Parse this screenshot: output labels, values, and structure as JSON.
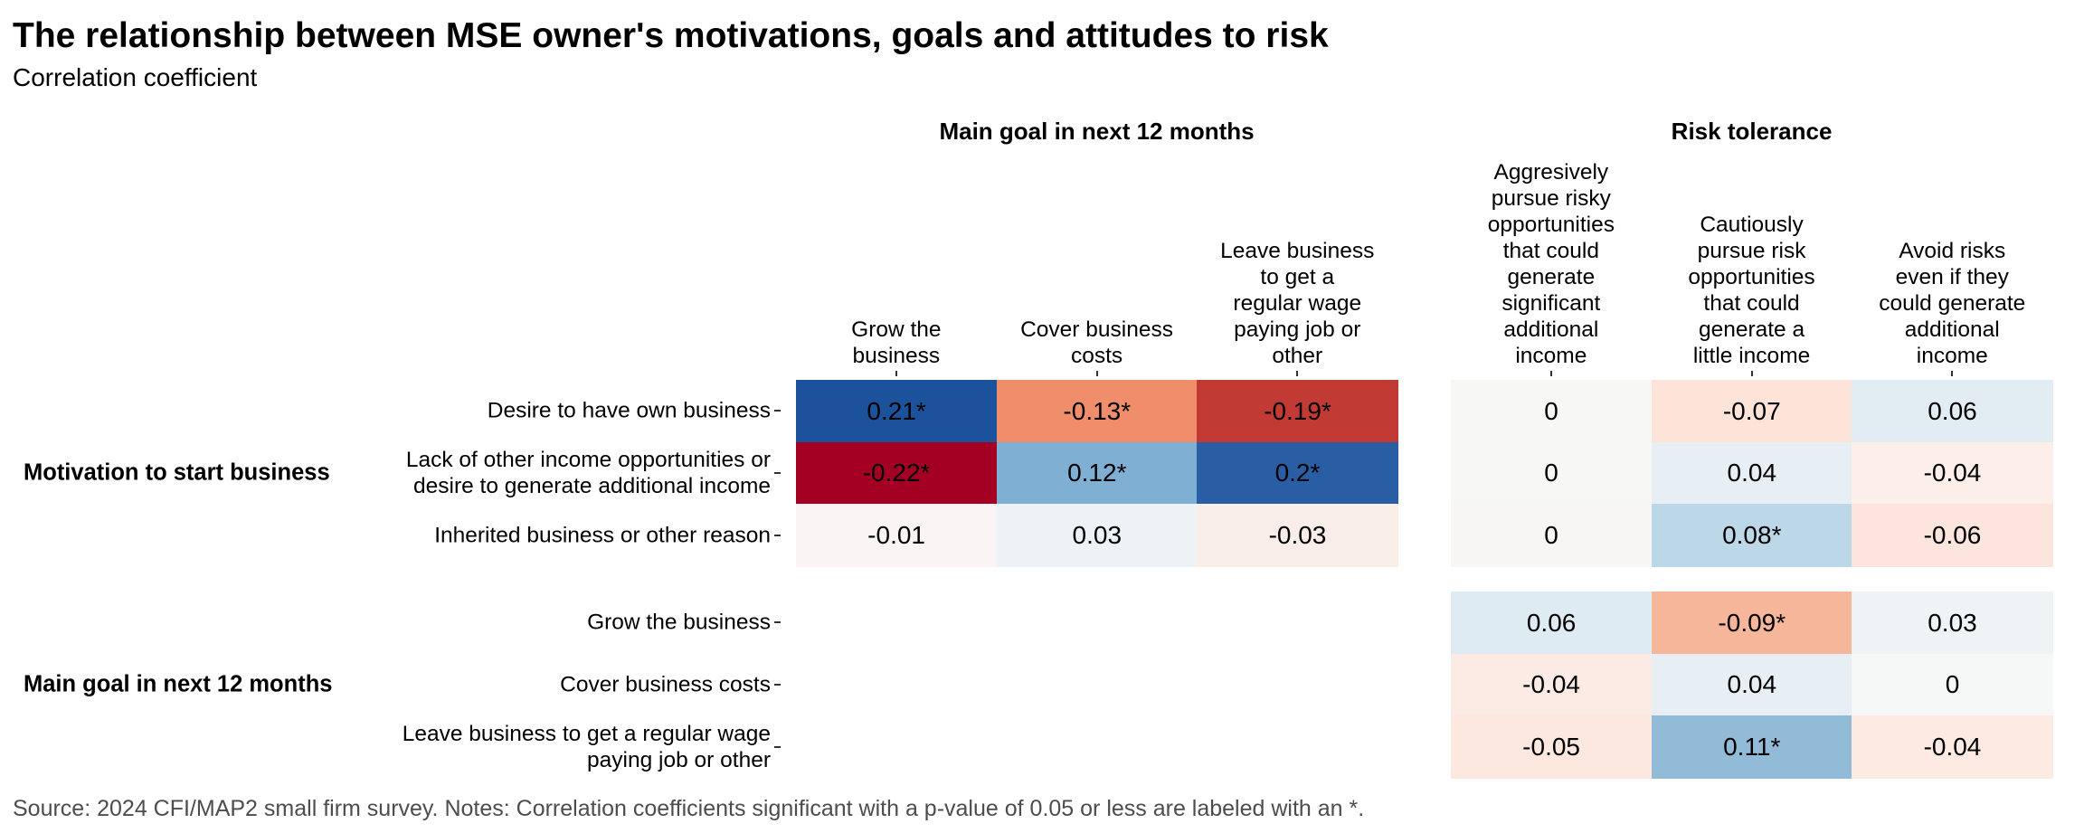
{
  "header": {
    "title": "The relationship between MSE owner's motivations, goals and attitudes to risk",
    "subtitle": "Correlation coefficient"
  },
  "footer": {
    "source": "Source: 2024 CFI/MAP2 small firm survey. Notes: Correlation coefficients significant with a p-value of 0.05 or less are labeled with an *."
  },
  "chart_data": {
    "type": "heatmap",
    "title": "The relationship between MSE owner's motivations, goals and attitudes to risk",
    "subtitle": "Correlation coefficient",
    "color_scale": {
      "name": "RdBu diverging",
      "negative": "#a50026",
      "zero": "#f7f7f7",
      "positive": "#1c519b",
      "range": [
        -0.22,
        0.22
      ]
    },
    "significance_marker": "*",
    "column_groups": [
      {
        "name": "Main goal in next 12 months",
        "columns": [
          "Grow the\nbusiness",
          "Cover business\ncosts",
          "Leave business\nto get a\nregular wage\npaying job or\nother"
        ]
      },
      {
        "name": "Risk tolerance",
        "columns": [
          "Aggresively\npursue risky\nopportunities\nthat could\ngenerate\nsignificant\nadditional\nincome",
          "Cautiously\npursue risk\nopportunities\nthat could\ngenerate a\nlittle income",
          "Avoid risks\neven if they\ncould generate\nadditional\nincome"
        ]
      }
    ],
    "row_groups": [
      {
        "name": "Motivation to start business",
        "rows": [
          {
            "label": "Desire to have own business",
            "cells": [
              {
                "value": 0.21,
                "label": "0.21*",
                "color": "#1c519b",
                "group": 0
              },
              {
                "value": -0.13,
                "label": "-0.13*",
                "color": "#f08e6c",
                "group": 0
              },
              {
                "value": -0.19,
                "label": "-0.19*",
                "color": "#c13a33",
                "group": 0
              },
              {
                "value": 0,
                "label": "0",
                "color": "#f7f7f6",
                "group": 1
              },
              {
                "value": -0.07,
                "label": "-0.07",
                "color": "#fde3d8",
                "group": 1
              },
              {
                "value": 0.06,
                "label": "0.06",
                "color": "#e1ecf3",
                "group": 1
              }
            ]
          },
          {
            "label": "Lack of other income opportunities or\ndesire to generate additional income",
            "cells": [
              {
                "value": -0.22,
                "label": "-0.22*",
                "color": "#a40023",
                "group": 0
              },
              {
                "value": 0.12,
                "label": "0.12*",
                "color": "#7fb0d3",
                "group": 0
              },
              {
                "value": 0.2,
                "label": "0.2*",
                "color": "#2a5ea4",
                "group": 0
              },
              {
                "value": 0,
                "label": "0",
                "color": "#f7f7f6",
                "group": 1
              },
              {
                "value": 0.04,
                "label": "0.04",
                "color": "#e7eff5",
                "group": 1
              },
              {
                "value": -0.04,
                "label": "-0.04",
                "color": "#fcefe9",
                "group": 1
              }
            ]
          },
          {
            "label": "Inherited business or other reason",
            "cells": [
              {
                "value": -0.01,
                "label": "-0.01",
                "color": "#faf5f4",
                "group": 0
              },
              {
                "value": 0.03,
                "label": "0.03",
                "color": "#edf2f6",
                "group": 0
              },
              {
                "value": -0.03,
                "label": "-0.03",
                "color": "#f9ede8",
                "group": 0
              },
              {
                "value": 0,
                "label": "0",
                "color": "#f8f6f5",
                "group": 1
              },
              {
                "value": 0.08,
                "label": "0.08*",
                "color": "#bcd7e8",
                "group": 1
              },
              {
                "value": -0.06,
                "label": "-0.06",
                "color": "#fbe5dc",
                "group": 1
              }
            ]
          }
        ]
      },
      {
        "name": "Main goal in next 12 months",
        "rows": [
          {
            "label": "Grow the business",
            "cells": [
              {
                "value": null,
                "label": "",
                "color": null,
                "group": 0
              },
              {
                "value": null,
                "label": "",
                "color": null,
                "group": 0
              },
              {
                "value": null,
                "label": "",
                "color": null,
                "group": 0
              },
              {
                "value": 0.06,
                "label": "0.06",
                "color": "#dfebf3",
                "group": 1
              },
              {
                "value": -0.09,
                "label": "-0.09*",
                "color": "#f6b69a",
                "group": 1
              },
              {
                "value": 0.03,
                "label": "0.03",
                "color": "#eef3f6",
                "group": 1
              }
            ]
          },
          {
            "label": "Cover business costs",
            "cells": [
              {
                "value": null,
                "label": "",
                "color": null,
                "group": 0
              },
              {
                "value": null,
                "label": "",
                "color": null,
                "group": 0
              },
              {
                "value": null,
                "label": "",
                "color": null,
                "group": 0
              },
              {
                "value": -0.04,
                "label": "-0.04",
                "color": "#fcebe5",
                "group": 1
              },
              {
                "value": 0.04,
                "label": "0.04",
                "color": "#e7eff5",
                "group": 1
              },
              {
                "value": 0,
                "label": "0",
                "color": "#f6f8f8",
                "group": 1
              }
            ]
          },
          {
            "label": "Leave business to get a regular wage\npaying job or other",
            "cells": [
              {
                "value": null,
                "label": "",
                "color": null,
                "group": 0
              },
              {
                "value": null,
                "label": "",
                "color": null,
                "group": 0
              },
              {
                "value": null,
                "label": "",
                "color": null,
                "group": 0
              },
              {
                "value": -0.05,
                "label": "-0.05",
                "color": "#fde8e0",
                "group": 1
              },
              {
                "value": 0.11,
                "label": "0.11*",
                "color": "#91bbd7",
                "group": 1
              },
              {
                "value": -0.04,
                "label": "-0.04",
                "color": "#fdeae3",
                "group": 1
              }
            ]
          }
        ]
      }
    ],
    "xlabel": "",
    "ylabel": "",
    "legend": "none"
  }
}
